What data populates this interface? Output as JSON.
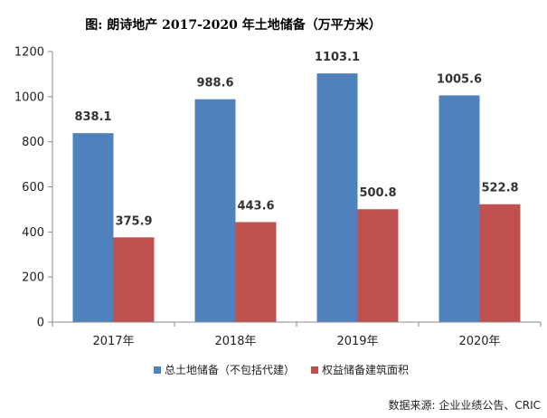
{
  "chart_data": {
    "type": "bar",
    "title": "图: 朗诗地产 2017-2020 年土地储备（万平方米）",
    "categories": [
      "2017年",
      "2018年",
      "2019年",
      "2020年"
    ],
    "series": [
      {
        "name": "总土地储备（不包括代建）",
        "color": "#4F81BD",
        "values": [
          838.1,
          988.6,
          1103.1,
          1005.6
        ]
      },
      {
        "name": "权益储备建筑面积",
        "color": "#C0504D",
        "values": [
          375.9,
          443.6,
          500.8,
          522.8
        ]
      }
    ],
    "ylim": [
      0,
      1200
    ],
    "yticks": [
      0,
      200,
      400,
      600,
      800,
      1000,
      1200
    ],
    "xlabel": "",
    "ylabel": "",
    "grid": false,
    "legend_position": "bottom"
  },
  "source": "数据来源: 企业业绩公告、CRIC"
}
